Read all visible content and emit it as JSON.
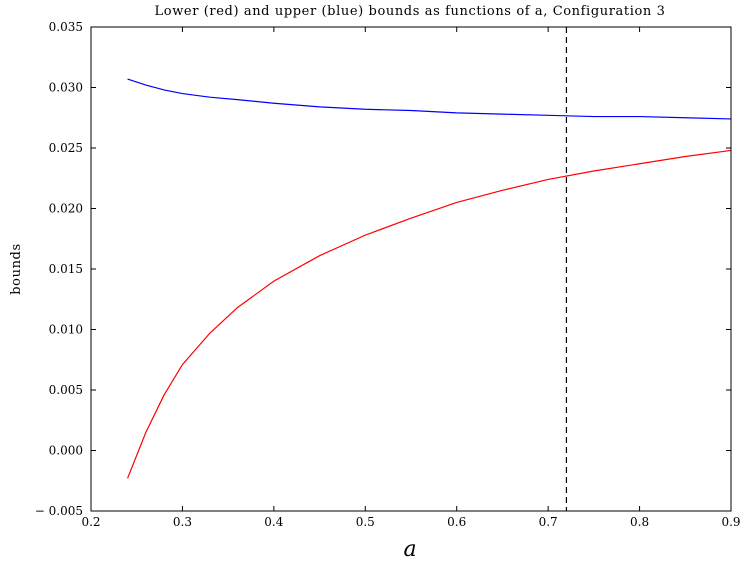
{
  "chart_data": {
    "type": "line",
    "title": "Lower (red) and upper (blue) bounds as functions of a, Configuration 3",
    "xlabel": "a",
    "ylabel": "bounds",
    "xlim": [
      0.2,
      0.9
    ],
    "ylim": [
      -0.005,
      0.035
    ],
    "x_ticks": [
      "0.2",
      "0.3",
      "0.4",
      "0.5",
      "0.6",
      "0.7",
      "0.8",
      "0.9"
    ],
    "y_ticks": [
      "− 0.005",
      "0.000",
      "0.005",
      "0.010",
      "0.015",
      "0.020",
      "0.025",
      "0.030",
      "0.035"
    ],
    "x_tick_values": [
      0.2,
      0.3,
      0.4,
      0.5,
      0.6,
      0.7,
      0.8,
      0.9
    ],
    "y_tick_values": [
      -0.005,
      0.0,
      0.005,
      0.01,
      0.015,
      0.02,
      0.025,
      0.03,
      0.035
    ],
    "grid": false,
    "legend": "none",
    "vline": {
      "x": 0.72,
      "style": "dashed",
      "color": "#000000"
    },
    "x": [
      0.24,
      0.26,
      0.28,
      0.3,
      0.33,
      0.36,
      0.4,
      0.45,
      0.5,
      0.55,
      0.6,
      0.65,
      0.7,
      0.75,
      0.8,
      0.85,
      0.9
    ],
    "series": [
      {
        "color": "#ff0000",
        "values": [
          -0.0023,
          0.0015,
          0.0046,
          0.0071,
          0.0097,
          0.0118,
          0.014,
          0.0161,
          0.0178,
          0.0192,
          0.0205,
          0.0215,
          0.0224,
          0.0231,
          0.0237,
          0.0243,
          0.0248
        ]
      },
      {
        "color": "#0000ff",
        "values": [
          0.0307,
          0.0302,
          0.0298,
          0.0295,
          0.0292,
          0.029,
          0.0287,
          0.0284,
          0.0282,
          0.0281,
          0.0279,
          0.0278,
          0.0277,
          0.0276,
          0.0276,
          0.0275,
          0.0274
        ]
      }
    ]
  }
}
